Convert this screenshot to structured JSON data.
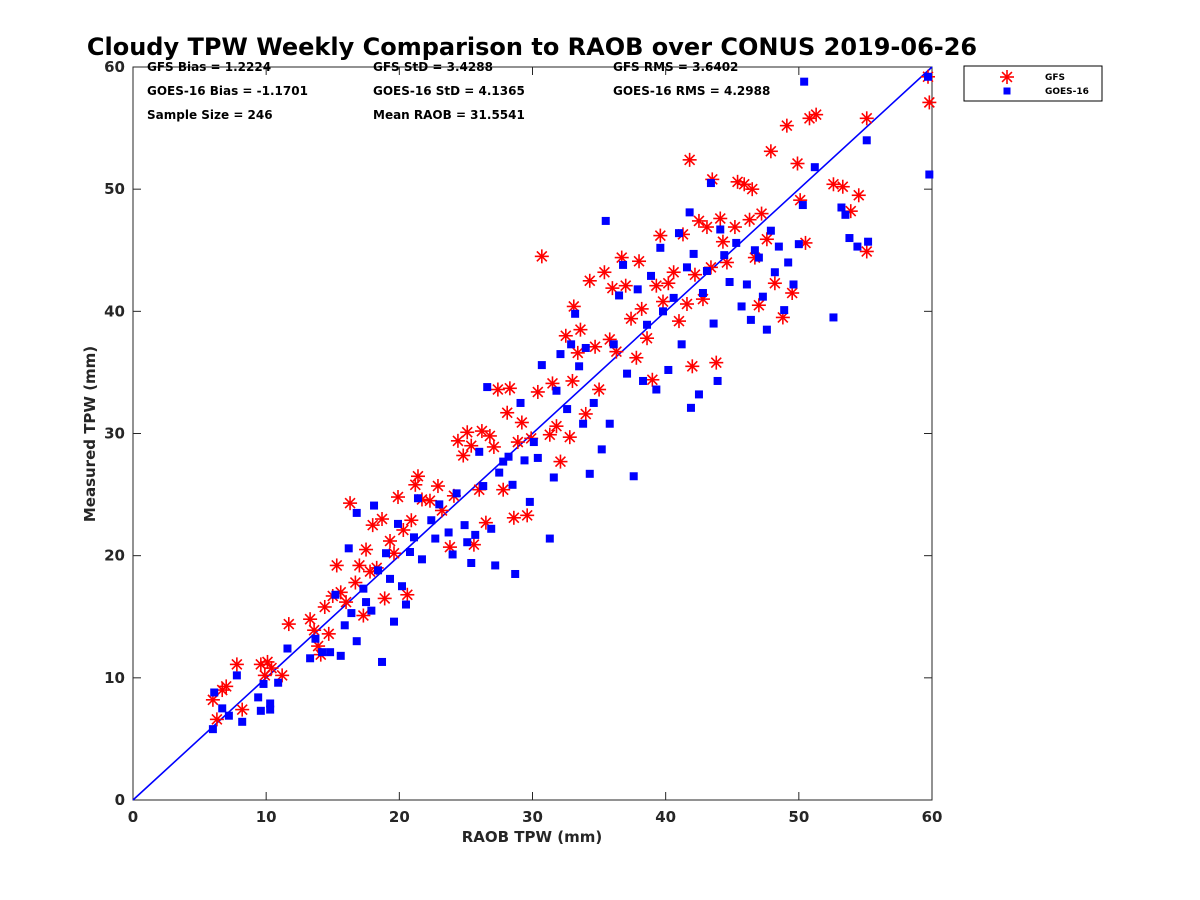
{
  "chart_data": {
    "type": "scatter",
    "title": "Cloudy TPW Weekly Comparison to RAOB over CONUS 2019-06-26",
    "xlabel": "RAOB TPW (mm)",
    "ylabel": "Measured TPW (mm)",
    "xlim": [
      0,
      60
    ],
    "ylim": [
      0,
      60
    ],
    "xticks": [
      "0",
      "10",
      "20",
      "30",
      "40",
      "50",
      "60"
    ],
    "yticks": [
      "0",
      "10",
      "20",
      "30",
      "40",
      "50",
      "60"
    ],
    "grid": false,
    "legend_position": "outside-top-right",
    "stats": [
      [
        "GFS Bias = 1.2224",
        "GFS StD = 3.4288",
        "GFS RMS = 3.6402"
      ],
      [
        "GOES-16 Bias = -1.1701",
        "GOES-16 StD = 4.1365",
        "GOES-16 RMS = 4.2988"
      ],
      [
        "Sample Size = 246",
        "Mean RAOB = 31.5541"
      ]
    ],
    "reference_line": {
      "from": [
        0,
        0
      ],
      "to": [
        60,
        60
      ],
      "color": "#0000ff"
    },
    "series": [
      {
        "name": "GFS",
        "marker": "asterisk",
        "color": "#ff0000",
        "points": [
          [
            6.0,
            8.2
          ],
          [
            6.3,
            6.6
          ],
          [
            6.7,
            9.0
          ],
          [
            7.0,
            9.3
          ],
          [
            7.8,
            11.1
          ],
          [
            8.2,
            7.4
          ],
          [
            9.6,
            11.1
          ],
          [
            9.9,
            10.2
          ],
          [
            10.1,
            11.3
          ],
          [
            10.4,
            10.8
          ],
          [
            11.2,
            10.2
          ],
          [
            11.7,
            14.4
          ],
          [
            13.3,
            14.8
          ],
          [
            13.6,
            13.9
          ],
          [
            13.9,
            12.6
          ],
          [
            14.1,
            11.9
          ],
          [
            14.4,
            15.8
          ],
          [
            14.7,
            13.6
          ],
          [
            15.0,
            16.7
          ],
          [
            15.3,
            19.2
          ],
          [
            15.6,
            17.0
          ],
          [
            16.0,
            16.2
          ],
          [
            16.3,
            24.3
          ],
          [
            16.7,
            17.8
          ],
          [
            17.0,
            19.2
          ],
          [
            17.3,
            15.1
          ],
          [
            17.5,
            20.5
          ],
          [
            17.8,
            18.7
          ],
          [
            18.0,
            22.5
          ],
          [
            18.3,
            19.0
          ],
          [
            18.7,
            23.0
          ],
          [
            18.9,
            16.5
          ],
          [
            19.3,
            21.2
          ],
          [
            19.6,
            20.2
          ],
          [
            19.9,
            24.8
          ],
          [
            20.3,
            22.1
          ],
          [
            20.6,
            16.8
          ],
          [
            20.9,
            22.9
          ],
          [
            21.2,
            25.8
          ],
          [
            21.4,
            26.5
          ],
          [
            21.7,
            24.6
          ],
          [
            22.3,
            24.5
          ],
          [
            22.9,
            25.7
          ],
          [
            23.2,
            23.7
          ],
          [
            23.8,
            20.7
          ],
          [
            24.1,
            24.9
          ],
          [
            24.4,
            29.4
          ],
          [
            24.8,
            28.2
          ],
          [
            25.1,
            30.1
          ],
          [
            25.4,
            29.0
          ],
          [
            25.6,
            20.9
          ],
          [
            26.0,
            25.4
          ],
          [
            26.2,
            30.2
          ],
          [
            26.5,
            22.7
          ],
          [
            26.8,
            29.8
          ],
          [
            27.1,
            28.9
          ],
          [
            27.4,
            33.6
          ],
          [
            27.8,
            25.4
          ],
          [
            28.1,
            31.7
          ],
          [
            28.3,
            33.7
          ],
          [
            28.6,
            23.1
          ],
          [
            28.9,
            29.3
          ],
          [
            29.2,
            30.9
          ],
          [
            29.6,
            23.3
          ],
          [
            29.9,
            29.6
          ],
          [
            30.4,
            33.4
          ],
          [
            30.7,
            44.5
          ],
          [
            31.3,
            29.9
          ],
          [
            31.5,
            34.1
          ],
          [
            31.8,
            30.6
          ],
          [
            32.1,
            27.7
          ],
          [
            32.5,
            38.0
          ],
          [
            32.8,
            29.7
          ],
          [
            33.0,
            34.3
          ],
          [
            33.1,
            40.4
          ],
          [
            33.4,
            36.6
          ],
          [
            33.6,
            38.5
          ],
          [
            34.0,
            31.6
          ],
          [
            34.3,
            42.5
          ],
          [
            34.7,
            37.1
          ],
          [
            35.0,
            33.6
          ],
          [
            35.4,
            43.2
          ],
          [
            35.8,
            37.7
          ],
          [
            36.0,
            41.9
          ],
          [
            36.3,
            36.7
          ],
          [
            36.7,
            44.4
          ],
          [
            37.0,
            42.1
          ],
          [
            37.4,
            39.4
          ],
          [
            37.8,
            36.2
          ],
          [
            38.0,
            44.1
          ],
          [
            38.2,
            40.2
          ],
          [
            38.6,
            37.8
          ],
          [
            39.0,
            34.4
          ],
          [
            39.3,
            42.1
          ],
          [
            39.6,
            46.2
          ],
          [
            39.8,
            40.8
          ],
          [
            40.2,
            42.3
          ],
          [
            40.6,
            43.2
          ],
          [
            41.0,
            39.2
          ],
          [
            41.3,
            46.3
          ],
          [
            41.6,
            40.6
          ],
          [
            41.8,
            52.4
          ],
          [
            42.0,
            35.5
          ],
          [
            42.2,
            43.0
          ],
          [
            42.5,
            47.4
          ],
          [
            42.8,
            41.0
          ],
          [
            43.1,
            46.9
          ],
          [
            43.4,
            43.6
          ],
          [
            43.5,
            50.8
          ],
          [
            43.8,
            35.8
          ],
          [
            44.1,
            47.6
          ],
          [
            44.3,
            45.7
          ],
          [
            44.6,
            44.0
          ],
          [
            45.2,
            46.9
          ],
          [
            45.4,
            50.6
          ],
          [
            45.9,
            50.4
          ],
          [
            46.3,
            47.5
          ],
          [
            46.5,
            50.0
          ],
          [
            46.7,
            44.4
          ],
          [
            47.0,
            40.5
          ],
          [
            47.2,
            48.0
          ],
          [
            47.6,
            45.9
          ],
          [
            47.9,
            53.1
          ],
          [
            48.2,
            42.3
          ],
          [
            48.8,
            39.5
          ],
          [
            49.1,
            55.2
          ],
          [
            49.5,
            41.5
          ],
          [
            49.9,
            52.1
          ],
          [
            50.1,
            49.1
          ],
          [
            50.5,
            45.6
          ],
          [
            50.8,
            55.8
          ],
          [
            51.3,
            56.1
          ],
          [
            52.6,
            50.4
          ],
          [
            53.3,
            50.2
          ],
          [
            53.9,
            48.2
          ],
          [
            54.5,
            49.5
          ],
          [
            55.1,
            44.9
          ],
          [
            55.1,
            55.8
          ],
          [
            59.7,
            59.2
          ],
          [
            59.8,
            57.1
          ]
        ]
      },
      {
        "name": "GOES-16",
        "marker": "square",
        "color": "#0000ff",
        "points": [
          [
            6.0,
            5.8
          ],
          [
            6.1,
            8.8
          ],
          [
            6.7,
            7.5
          ],
          [
            7.2,
            6.9
          ],
          [
            7.8,
            10.2
          ],
          [
            8.2,
            6.4
          ],
          [
            9.4,
            8.4
          ],
          [
            9.6,
            7.3
          ],
          [
            9.8,
            9.5
          ],
          [
            10.3,
            7.9
          ],
          [
            10.3,
            7.4
          ],
          [
            10.9,
            9.6
          ],
          [
            11.6,
            12.4
          ],
          [
            13.3,
            11.6
          ],
          [
            13.7,
            13.2
          ],
          [
            14.2,
            12.1
          ],
          [
            14.8,
            12.1
          ],
          [
            15.2,
            16.8
          ],
          [
            15.6,
            11.8
          ],
          [
            15.9,
            14.3
          ],
          [
            16.2,
            20.6
          ],
          [
            16.4,
            15.3
          ],
          [
            16.8,
            13.0
          ],
          [
            16.8,
            23.5
          ],
          [
            17.3,
            17.3
          ],
          [
            17.5,
            16.2
          ],
          [
            17.9,
            15.5
          ],
          [
            18.1,
            24.1
          ],
          [
            18.4,
            18.8
          ],
          [
            18.7,
            11.3
          ],
          [
            19.0,
            20.2
          ],
          [
            19.3,
            18.1
          ],
          [
            19.6,
            14.6
          ],
          [
            19.9,
            22.6
          ],
          [
            20.2,
            17.5
          ],
          [
            20.5,
            16.0
          ],
          [
            20.8,
            20.3
          ],
          [
            21.1,
            21.5
          ],
          [
            21.4,
            24.7
          ],
          [
            21.7,
            19.7
          ],
          [
            22.4,
            22.9
          ],
          [
            22.7,
            21.4
          ],
          [
            23.0,
            24.2
          ],
          [
            23.7,
            21.9
          ],
          [
            24.0,
            20.1
          ],
          [
            24.3,
            25.1
          ],
          [
            24.9,
            22.5
          ],
          [
            25.1,
            21.1
          ],
          [
            25.4,
            19.4
          ],
          [
            25.7,
            21.7
          ],
          [
            26.0,
            28.5
          ],
          [
            26.3,
            25.7
          ],
          [
            26.6,
            33.8
          ],
          [
            26.9,
            22.2
          ],
          [
            27.2,
            19.2
          ],
          [
            27.5,
            26.8
          ],
          [
            27.8,
            27.7
          ],
          [
            28.2,
            28.1
          ],
          [
            28.5,
            25.8
          ],
          [
            28.7,
            18.5
          ],
          [
            29.1,
            32.5
          ],
          [
            29.4,
            27.8
          ],
          [
            29.8,
            24.4
          ],
          [
            30.1,
            29.3
          ],
          [
            30.4,
            28.0
          ],
          [
            30.7,
            35.6
          ],
          [
            31.3,
            21.4
          ],
          [
            31.6,
            26.4
          ],
          [
            31.8,
            33.5
          ],
          [
            32.1,
            36.5
          ],
          [
            32.6,
            32.0
          ],
          [
            32.9,
            37.3
          ],
          [
            33.2,
            39.8
          ],
          [
            33.5,
            35.5
          ],
          [
            33.8,
            30.8
          ],
          [
            34.0,
            37.0
          ],
          [
            34.3,
            26.7
          ],
          [
            34.6,
            32.5
          ],
          [
            35.2,
            28.7
          ],
          [
            35.5,
            47.4
          ],
          [
            35.8,
            30.8
          ],
          [
            36.1,
            37.3
          ],
          [
            36.5,
            41.3
          ],
          [
            36.8,
            43.8
          ],
          [
            37.1,
            34.9
          ],
          [
            37.6,
            26.5
          ],
          [
            37.9,
            41.8
          ],
          [
            38.3,
            34.3
          ],
          [
            38.6,
            38.9
          ],
          [
            38.9,
            42.9
          ],
          [
            39.3,
            33.6
          ],
          [
            39.6,
            45.2
          ],
          [
            39.8,
            40.0
          ],
          [
            40.2,
            35.2
          ],
          [
            40.6,
            41.1
          ],
          [
            41.0,
            46.4
          ],
          [
            41.2,
            37.3
          ],
          [
            41.6,
            43.6
          ],
          [
            41.8,
            48.1
          ],
          [
            41.9,
            32.1
          ],
          [
            42.1,
            44.7
          ],
          [
            42.5,
            33.2
          ],
          [
            42.8,
            41.5
          ],
          [
            43.1,
            43.3
          ],
          [
            43.4,
            50.5
          ],
          [
            43.6,
            39.0
          ],
          [
            43.9,
            34.3
          ],
          [
            44.1,
            46.7
          ],
          [
            44.4,
            44.6
          ],
          [
            44.8,
            42.4
          ],
          [
            45.3,
            45.6
          ],
          [
            45.7,
            40.4
          ],
          [
            46.1,
            42.2
          ],
          [
            46.4,
            39.3
          ],
          [
            46.7,
            45.0
          ],
          [
            47.0,
            44.4
          ],
          [
            47.3,
            41.2
          ],
          [
            47.6,
            38.5
          ],
          [
            47.9,
            46.6
          ],
          [
            48.2,
            43.2
          ],
          [
            48.5,
            45.3
          ],
          [
            48.9,
            40.1
          ],
          [
            49.2,
            44.0
          ],
          [
            49.6,
            42.2
          ],
          [
            50.0,
            45.5
          ],
          [
            50.3,
            48.7
          ],
          [
            50.4,
            58.8
          ],
          [
            51.2,
            51.8
          ],
          [
            52.6,
            39.5
          ],
          [
            53.2,
            48.5
          ],
          [
            53.5,
            47.9
          ],
          [
            53.8,
            46.0
          ],
          [
            54.4,
            45.3
          ],
          [
            55.1,
            54.0
          ],
          [
            55.2,
            45.7
          ],
          [
            59.7,
            59.2
          ],
          [
            59.8,
            51.2
          ]
        ]
      }
    ]
  }
}
